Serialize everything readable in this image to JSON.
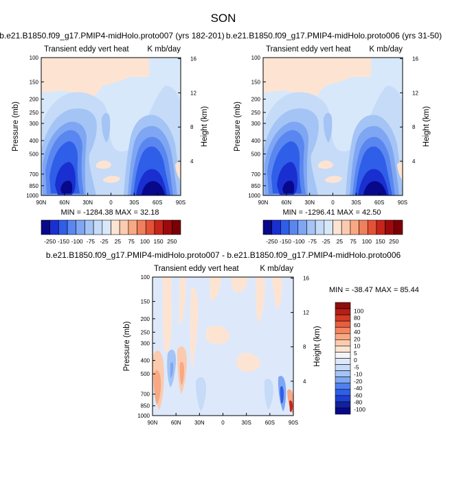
{
  "figure_title": "SON",
  "colors": {
    "scale_panel": [
      "#08088a",
      "#1a2fd0",
      "#2f5ee8",
      "#5a86f0",
      "#7fa6f2",
      "#a4c4f5",
      "#c6dbf7",
      "#d8e8fb",
      "#fde4d2",
      "#fbcbb0",
      "#f8a883",
      "#f07f5c",
      "#e35236",
      "#c7241a",
      "#9c0a0c",
      "#7a0006"
    ],
    "scale_diff": [
      "#08088a",
      "#12229e",
      "#1f3fd0",
      "#2f5ee8",
      "#4f80ee",
      "#7fa6f2",
      "#a4c4f5",
      "#c6dbf7",
      "#dde9fb",
      "#f5f5f5",
      "#fde4d2",
      "#fbcbb0",
      "#f8a883",
      "#f48561",
      "#e85e3d",
      "#d23a24",
      "#b51f15",
      "#8f0f0c"
    ]
  },
  "colorbar_panel": {
    "labels": [
      "-250",
      "-150",
      "-100",
      "-75",
      "-25",
      "25",
      "75",
      "100",
      "150",
      "250"
    ]
  },
  "colorbar_diff": {
    "labels": [
      "100",
      "80",
      "60",
      "40",
      "20",
      "10",
      "5",
      "0",
      "-5",
      "-10",
      "-20",
      "-40",
      "-60",
      "-80",
      "-100"
    ]
  },
  "chart_data": [
    {
      "type": "contour",
      "id": "panel_a",
      "title": "b.e21.B1850.f09_g17.PMIP4-midHolo.proto007 (yrs 182-201)",
      "left_label": "Transient eddy vert heat",
      "right_label": "K mb/day",
      "xlabel": "",
      "ylabel": "Pressure (mb)",
      "ylabel_right": "Height (km)",
      "x_ticks": [
        "90N",
        "60N",
        "30N",
        "0",
        "30S",
        "60S",
        "90S"
      ],
      "y_ticks": [
        "100",
        "150",
        "200",
        "250",
        "300",
        "400",
        "500",
        "700",
        "850",
        "1000"
      ],
      "y_right_ticks": [
        "16",
        "12",
        "8",
        "4"
      ],
      "stats": "MIN = -1284.38   MAX =  32.18",
      "min": -1284.38,
      "max": 32.18,
      "features": [
        {
          "lat": 62,
          "p": 820,
          "value": -250
        },
        {
          "lat": -52,
          "p": 820,
          "value": -250
        },
        {
          "lat": 62,
          "p": 350,
          "value": -75
        },
        {
          "lat": -45,
          "p": 330,
          "value": -75
        },
        {
          "lat": 20,
          "p": 300,
          "value": -25
        },
        {
          "lat": 10,
          "p": 600,
          "value": 5
        },
        {
          "lat": -2,
          "p": 700,
          "value": 5
        },
        {
          "lat": 60,
          "p": 150,
          "value": 10
        },
        {
          "lat": -50,
          "p": 130,
          "value": -5
        }
      ]
    },
    {
      "type": "contour",
      "id": "panel_b",
      "title": "b.e21.B1850.f09_g17.PMIP4-midHolo.proto006 (yrs 31-50)",
      "left_label": "Transient eddy vert heat",
      "right_label": "K mb/day",
      "xlabel": "",
      "ylabel": "Pressure (mb)",
      "ylabel_right": "Height (km)",
      "x_ticks": [
        "90N",
        "60N",
        "30N",
        "0",
        "30S",
        "60S",
        "90S"
      ],
      "y_ticks": [
        "100",
        "150",
        "200",
        "250",
        "300",
        "400",
        "500",
        "700",
        "850",
        "1000"
      ],
      "y_right_ticks": [
        "16",
        "12",
        "8",
        "4"
      ],
      "stats": "MIN = -1296.41   MAX =  42.50",
      "min": -1296.41,
      "max": 42.5,
      "features": [
        {
          "lat": 62,
          "p": 820,
          "value": -250
        },
        {
          "lat": -52,
          "p": 820,
          "value": -250
        },
        {
          "lat": 62,
          "p": 350,
          "value": -75
        },
        {
          "lat": -45,
          "p": 330,
          "value": -75
        },
        {
          "lat": 20,
          "p": 300,
          "value": -25
        },
        {
          "lat": 10,
          "p": 600,
          "value": 5
        },
        {
          "lat": -2,
          "p": 700,
          "value": 5
        },
        {
          "lat": 60,
          "p": 150,
          "value": 10
        },
        {
          "lat": -50,
          "p": 130,
          "value": -5
        }
      ]
    },
    {
      "type": "contour",
      "id": "panel_diff",
      "title": "b.e21.B1850.f09_g17.PMIP4-midHolo.proto007 - b.e21.B1850.f09_g17.PMIP4-midHolo.proto006",
      "left_label": "Transient eddy vert heat",
      "right_label": "K mb/day",
      "xlabel": "",
      "ylabel": "Pressure (mb)",
      "ylabel_right": "Height (km)",
      "x_ticks": [
        "90N",
        "60N",
        "30N",
        "0",
        "30S",
        "60S",
        "90S"
      ],
      "y_ticks": [
        "100",
        "150",
        "200",
        "250",
        "300",
        "400",
        "500",
        "700",
        "850",
        "1000"
      ],
      "y_right_ticks": [
        "16",
        "12",
        "8",
        "4"
      ],
      "stats": "MIN = -38.47   MAX =  85.44",
      "min": -38.47,
      "max": 85.44,
      "features": [
        {
          "lat": 85,
          "p": 650,
          "value": 20
        },
        {
          "lat": 65,
          "p": 450,
          "value": -10
        },
        {
          "lat": 55,
          "p": 550,
          "value": 10
        },
        {
          "lat": -78,
          "p": 800,
          "value": -40
        },
        {
          "lat": -85,
          "p": 900,
          "value": 40
        }
      ]
    }
  ]
}
